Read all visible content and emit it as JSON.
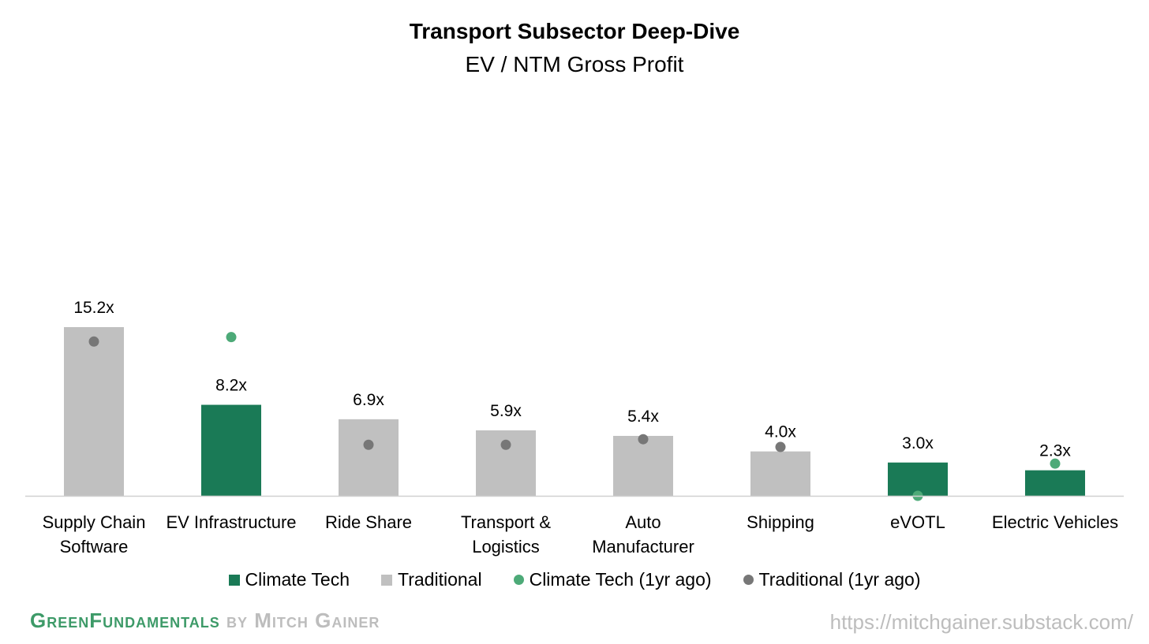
{
  "chart_data": {
    "type": "bar",
    "title": "Transport Subsector Deep-Dive",
    "subtitle": "EV / NTM Gross Profit",
    "categories": [
      "Supply Chain Software",
      "EV Infrastructure",
      "Ride Share",
      "Transport & Logistics",
      "Auto Manufacturer",
      "Shipping",
      "eVOTL",
      "Electric Vehicles"
    ],
    "category_lines": [
      [
        "Supply Chain",
        "Software"
      ],
      [
        "EV Infrastructure"
      ],
      [
        "Ride Share"
      ],
      [
        "Transport &",
        "Logistics"
      ],
      [
        "Auto",
        "Manufacturer"
      ],
      [
        "Shipping"
      ],
      [
        "eVOTL"
      ],
      [
        "Electric Vehicles"
      ]
    ],
    "values": [
      15.2,
      8.2,
      6.9,
      5.9,
      5.4,
      4.0,
      3.0,
      2.3
    ],
    "labels": [
      "15.2x",
      "8.2x",
      "6.9x",
      "5.9x",
      "5.4x",
      "4.0x",
      "3.0x",
      "2.3x"
    ],
    "groups": [
      "Traditional",
      "Climate Tech",
      "Traditional",
      "Traditional",
      "Traditional",
      "Traditional",
      "Climate Tech",
      "Climate Tech"
    ],
    "prior_year": [
      13.9,
      14.3,
      4.6,
      4.6,
      5.1,
      4.4,
      0.0,
      2.9
    ],
    "ylim": [
      0,
      16
    ],
    "xlabel": "",
    "ylabel": "",
    "legend": [
      {
        "name": "Climate Tech",
        "shape": "square",
        "color": "#1a7a56"
      },
      {
        "name": "Traditional",
        "shape": "square",
        "color": "#c0c0c0"
      },
      {
        "name": "Climate Tech (1yr ago)",
        "shape": "dot",
        "color": "#4daa78"
      },
      {
        "name": "Traditional (1yr ago)",
        "shape": "dot",
        "color": "#777777"
      }
    ]
  },
  "colors": {
    "climate_tech": "#1a7a56",
    "traditional": "#c0c0c0",
    "climate_tech_prior": "#4daa78",
    "traditional_prior": "#777777",
    "axis": "#d0d0d0"
  },
  "footer": {
    "brand_part1": "GreenFundamentals",
    "brand_part2": " by Mitch Gainer",
    "url": "https://mitchgainer.substack.com/"
  }
}
